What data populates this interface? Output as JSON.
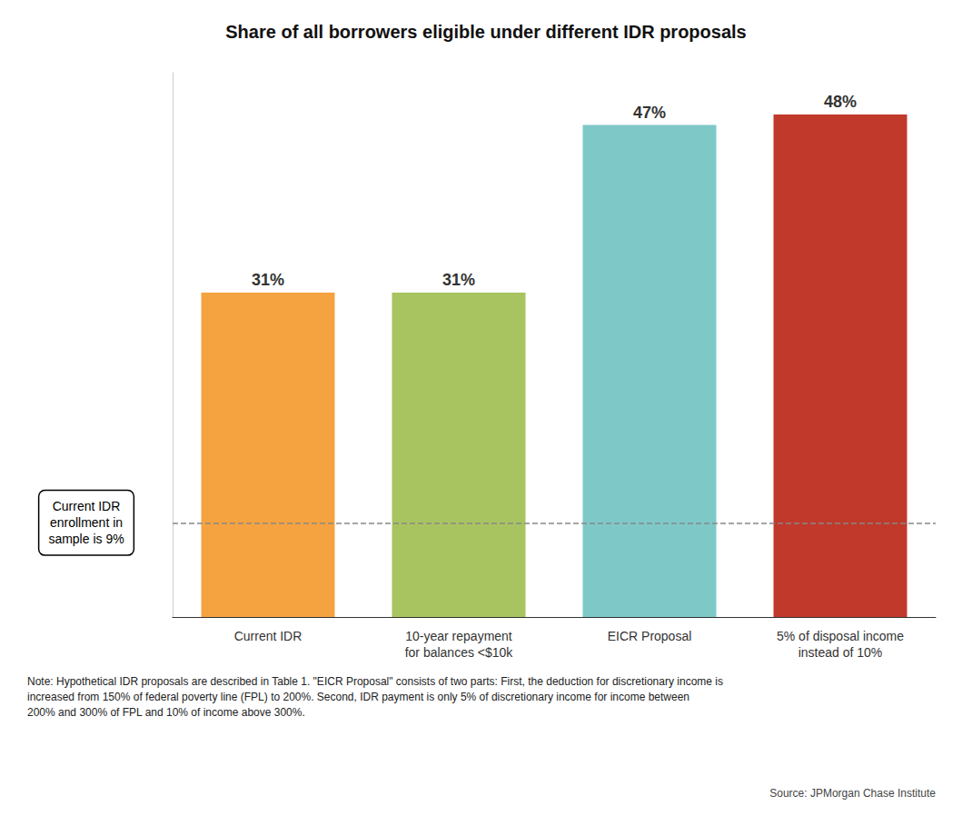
{
  "chart_data": {
    "type": "bar",
    "title": "Share of all borrowers eligible under different IDR proposals",
    "categories": [
      "Current IDR",
      "10-year repayment\nfor balances <$10k",
      "EICR Proposal",
      "5% of disposal income\ninstead of 10%"
    ],
    "values": [
      31,
      31,
      47,
      48
    ],
    "value_labels": [
      "31%",
      "31%",
      "47%",
      "48%"
    ],
    "data_labels": true,
    "colors": [
      "#F5A340",
      "#A8C460",
      "#7EC8C8",
      "#C0392B"
    ],
    "ylim": [
      0,
      52
    ],
    "tick_labels": "x",
    "grid": false,
    "reference_line": {
      "value": 9,
      "text": "Current IDR\nenrollment in\nsample is 9%"
    },
    "note": "Note: Hypothetical IDR proposals are described in Table 1. \"EICR Proposal\" consists of two parts: First, the deduction for discretionary income is\nincreased from 150% of federal poverty line (FPL) to 200%. Second, IDR payment is only 5% of discretionary income for income between\n200% and 300% of FPL and 10% of income above 300%.",
    "source": "Source: JPMorgan Chase Institute"
  }
}
